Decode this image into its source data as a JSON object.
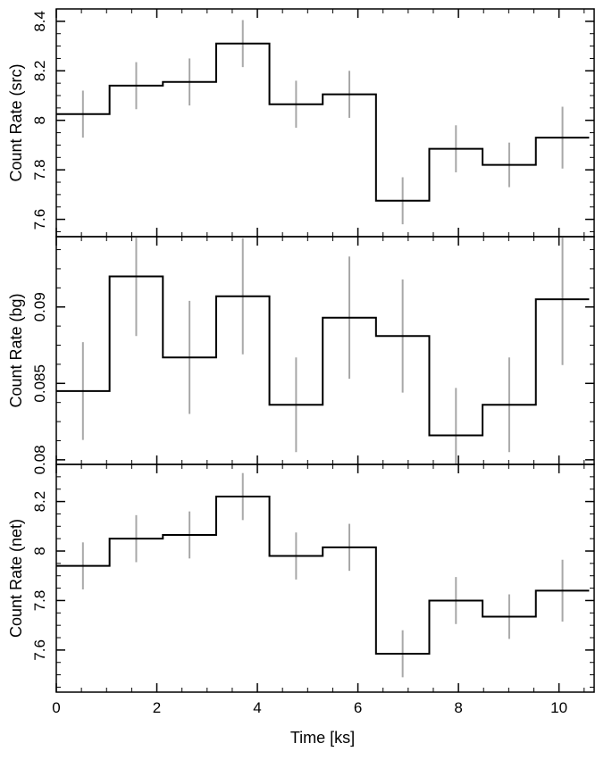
{
  "chart_data": [
    {
      "type": "line",
      "style": "step-with-error-bars",
      "ylabel": "Count Rate (src)",
      "xlim": [
        0,
        10.7
      ],
      "ylim": [
        7.53,
        8.45
      ],
      "yticks": [
        7.6,
        7.8,
        8,
        8.2,
        8.4
      ],
      "ytick_labels": [
        "7.6",
        "7.8",
        "8",
        "8.2",
        "8.4"
      ],
      "x_edges": [
        0,
        1.06,
        2.12,
        3.18,
        4.24,
        5.3,
        6.36,
        7.42,
        8.48,
        9.54,
        10.6
      ],
      "x_centers": [
        0.53,
        1.59,
        2.65,
        3.71,
        4.77,
        5.83,
        6.89,
        7.95,
        9.01,
        10.07
      ],
      "values": [
        8.025,
        8.14,
        8.155,
        8.31,
        8.065,
        8.105,
        7.675,
        7.885,
        7.82,
        7.93
      ],
      "err": [
        0.095,
        0.095,
        0.095,
        0.095,
        0.095,
        0.095,
        0.095,
        0.095,
        0.09,
        0.125
      ]
    },
    {
      "type": "line",
      "style": "step-with-error-bars",
      "ylabel": "Count Rate (bg)",
      "xlim": [
        0,
        10.7
      ],
      "ylim": [
        0.0797,
        0.0946
      ],
      "yticks": [
        0.08,
        0.085,
        0.09
      ],
      "ytick_labels": [
        "0.08",
        "0.085",
        "0.09"
      ],
      "x_edges": [
        0,
        1.06,
        2.12,
        3.18,
        4.24,
        5.3,
        6.36,
        7.42,
        8.48,
        9.54,
        10.6
      ],
      "x_centers": [
        0.53,
        1.59,
        2.65,
        3.71,
        4.77,
        5.83,
        6.89,
        7.95,
        9.01,
        10.07
      ],
      "values": [
        0.0845,
        0.092,
        0.0867,
        0.0907,
        0.0836,
        0.0893,
        0.0881,
        0.0816,
        0.0836,
        0.0905
      ],
      "err": [
        0.0032,
        0.0039,
        0.0037,
        0.0038,
        0.0031,
        0.004,
        0.0037,
        0.0031,
        0.0031,
        0.0043
      ]
    },
    {
      "type": "line",
      "style": "step-with-error-bars",
      "ylabel": "Count Rate (net)",
      "xlabel": "Time [ks]",
      "xlim": [
        0,
        10.7
      ],
      "ylim": [
        7.43,
        8.35
      ],
      "xticks": [
        0,
        2,
        4,
        6,
        8,
        10
      ],
      "xtick_labels": [
        "0",
        "2",
        "4",
        "6",
        "8",
        "10"
      ],
      "yticks": [
        7.6,
        7.8,
        8,
        8.2
      ],
      "ytick_labels": [
        "7.6",
        "7.8",
        "8",
        "8.2"
      ],
      "x_edges": [
        0,
        1.06,
        2.12,
        3.18,
        4.24,
        5.3,
        6.36,
        7.42,
        8.48,
        9.54,
        10.6
      ],
      "x_centers": [
        0.53,
        1.59,
        2.65,
        3.71,
        4.77,
        5.83,
        6.89,
        7.95,
        9.01,
        10.07
      ],
      "values": [
        7.94,
        8.05,
        8.065,
        8.22,
        7.98,
        8.015,
        7.585,
        7.8,
        7.735,
        7.84
      ],
      "err": [
        0.095,
        0.095,
        0.095,
        0.095,
        0.095,
        0.095,
        0.095,
        0.095,
        0.09,
        0.125
      ]
    }
  ],
  "colors": {
    "step_line": "#000000",
    "error_bars": "#a8a8a8",
    "frame": "#000000"
  }
}
